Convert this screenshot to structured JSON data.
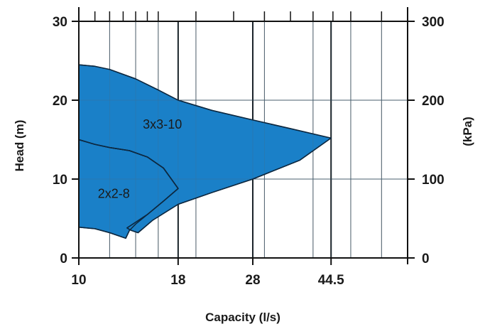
{
  "chart_data": {
    "type": "area",
    "xlabel": "Capacity (l/s)",
    "ylabel": "Head (m)",
    "ylabel_right": "(kPa)",
    "x_scale": "log",
    "xlim": [
      10,
      70
    ],
    "ylim": [
      0,
      30
    ],
    "ylim_right": [
      0,
      300
    ],
    "x_tick_labels": [
      {
        "value": 10,
        "label": "10"
      },
      {
        "value": 18,
        "label": "18"
      },
      {
        "value": 28,
        "label": "28"
      },
      {
        "value": 44.5,
        "label": "44.5"
      }
    ],
    "y_tick_labels": [
      {
        "value": 0,
        "label": "0"
      },
      {
        "value": 10,
        "label": "10"
      },
      {
        "value": 20,
        "label": "20"
      },
      {
        "value": 30,
        "label": "30"
      }
    ],
    "y_right_tick_labels": [
      {
        "value": 0,
        "label": "0"
      },
      {
        "value": 100,
        "label": "100"
      },
      {
        "value": 200,
        "label": "200"
      },
      {
        "value": 300,
        "label": "300"
      }
    ],
    "grid": true,
    "fill_color": "#1a80c8",
    "outline_color": "#0d2840",
    "grid_color": "#555555",
    "series": [
      {
        "name": "2x2-8",
        "label_at": {
          "x": 12.3,
          "y": 7.6
        },
        "outline": [
          {
            "x": 10,
            "y": 15.0
          },
          {
            "x": 11.0,
            "y": 14.4
          },
          {
            "x": 12.0,
            "y": 14.0
          },
          {
            "x": 13.5,
            "y": 13.6
          },
          {
            "x": 15.0,
            "y": 12.8
          },
          {
            "x": 16.5,
            "y": 11.4
          },
          {
            "x": 18.0,
            "y": 8.8
          },
          {
            "x": 16.5,
            "y": 7.2
          },
          {
            "x": 15.0,
            "y": 5.5
          },
          {
            "x": 14.0,
            "y": 4.3
          },
          {
            "x": 13.5,
            "y": 3.5
          },
          {
            "x": 13.2,
            "y": 2.5
          },
          {
            "x": 12.0,
            "y": 3.2
          },
          {
            "x": 11.0,
            "y": 3.7
          },
          {
            "x": 10,
            "y": 3.9
          }
        ]
      },
      {
        "name": "3x3-10",
        "label_at": {
          "x": 16.4,
          "y": 16.4
        },
        "outline": [
          {
            "x": 10,
            "y": 24.5
          },
          {
            "x": 11.0,
            "y": 24.3
          },
          {
            "x": 12.0,
            "y": 23.9
          },
          {
            "x": 14.0,
            "y": 22.7
          },
          {
            "x": 16.0,
            "y": 21.3
          },
          {
            "x": 18.0,
            "y": 20.0
          },
          {
            "x": 22.0,
            "y": 18.7
          },
          {
            "x": 28.0,
            "y": 17.5
          },
          {
            "x": 35.0,
            "y": 16.4
          },
          {
            "x": 44.5,
            "y": 15.2
          },
          {
            "x": 37.0,
            "y": 12.4
          },
          {
            "x": 28.0,
            "y": 10.0
          },
          {
            "x": 22.0,
            "y": 8.3
          },
          {
            "x": 18.0,
            "y": 6.8
          },
          {
            "x": 15.5,
            "y": 4.8
          },
          {
            "x": 14.2,
            "y": 3.2
          },
          {
            "x": 13.6,
            "y": 3.5
          },
          {
            "x": 13.3,
            "y": 3.8
          },
          {
            "x": 15.0,
            "y": 5.5
          },
          {
            "x": 16.5,
            "y": 7.2
          },
          {
            "x": 18.0,
            "y": 8.8
          },
          {
            "x": 16.5,
            "y": 11.4
          },
          {
            "x": 15.0,
            "y": 12.8
          },
          {
            "x": 13.5,
            "y": 13.6
          },
          {
            "x": 12.0,
            "y": 14.0
          },
          {
            "x": 11.0,
            "y": 14.4
          },
          {
            "x": 10,
            "y": 15.0
          }
        ]
      }
    ]
  }
}
